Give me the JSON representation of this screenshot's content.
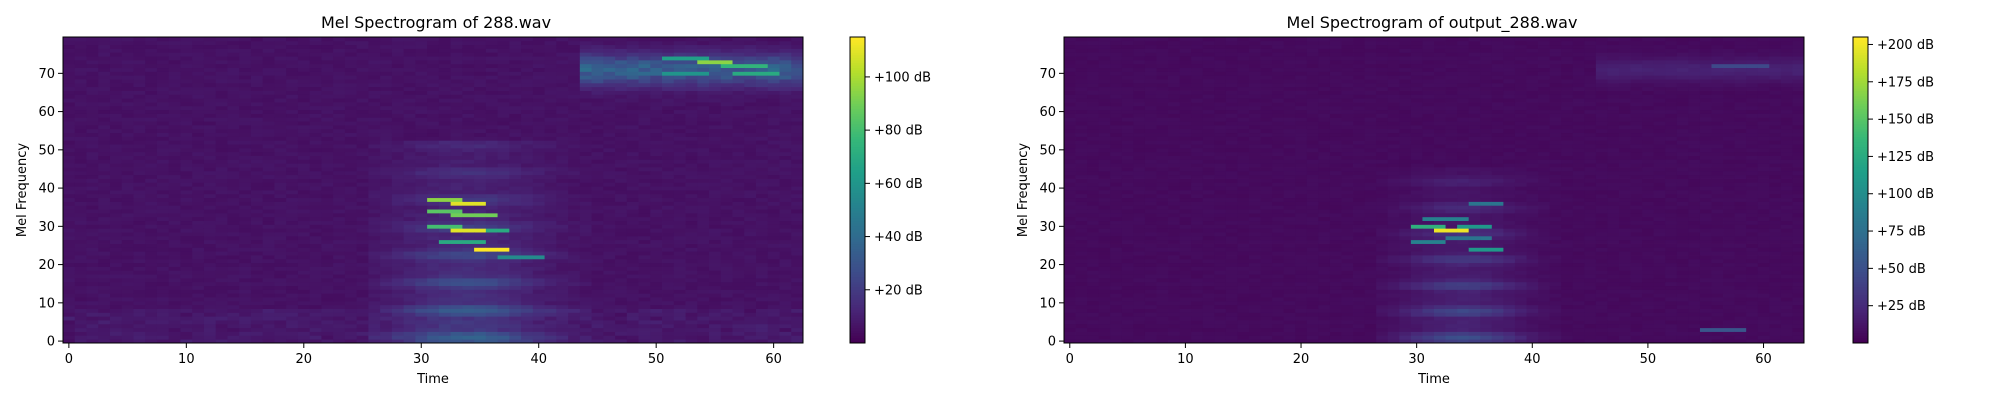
{
  "chart_data": [
    {
      "type": "heatmap",
      "title": "Mel Spectrogram of 288.wav",
      "xlabel": "Time",
      "ylabel": "Mel Frequency",
      "xlim": [
        -0.5,
        62.5
      ],
      "ylim": [
        -0.5,
        79.5
      ],
      "x_ticks": [
        0,
        10,
        20,
        30,
        40,
        50,
        60
      ],
      "y_ticks": [
        0,
        10,
        20,
        30,
        40,
        50,
        60,
        70
      ],
      "colormap": "viridis",
      "color_range": [
        0,
        115
      ],
      "colorbar": {
        "ticks": [
          20,
          40,
          60,
          80,
          100
        ],
        "tick_labels": [
          "+20 dB",
          "+40 dB",
          "+60 dB",
          "+80 dB",
          "+100 dB"
        ]
      },
      "features": [
        {
          "t0": 31,
          "t1": 33,
          "f": 37,
          "value": 95
        },
        {
          "t0": 33,
          "t1": 35,
          "f": 36,
          "value": 110
        },
        {
          "t0": 31,
          "t1": 33,
          "f": 34,
          "value": 85
        },
        {
          "t0": 33,
          "t1": 36,
          "f": 33,
          "value": 90
        },
        {
          "t0": 31,
          "t1": 33,
          "f": 30,
          "value": 80
        },
        {
          "t0": 33,
          "t1": 35,
          "f": 29,
          "value": 110
        },
        {
          "t0": 35,
          "t1": 37,
          "f": 29,
          "value": 70
        },
        {
          "t0": 32,
          "t1": 35,
          "f": 26,
          "value": 70
        },
        {
          "t0": 35,
          "t1": 37,
          "f": 24,
          "value": 115
        },
        {
          "t0": 37,
          "t1": 40,
          "f": 22,
          "value": 55
        },
        {
          "t0": 51,
          "t1": 54,
          "f": 74,
          "value": 65
        },
        {
          "t0": 54,
          "t1": 56,
          "f": 73,
          "value": 95
        },
        {
          "t0": 56,
          "t1": 59,
          "f": 72,
          "value": 75
        },
        {
          "t0": 51,
          "t1": 54,
          "f": 70,
          "value": 60
        },
        {
          "t0": 57,
          "t1": 60,
          "f": 70,
          "value": 70
        }
      ]
    },
    {
      "type": "heatmap",
      "title": "Mel Spectrogram of output_288.wav",
      "xlabel": "Time",
      "ylabel": "Mel Frequency",
      "xlim": [
        -0.5,
        63.5
      ],
      "ylim": [
        -0.5,
        79.5
      ],
      "x_ticks": [
        0,
        10,
        20,
        30,
        40,
        50,
        60
      ],
      "y_ticks": [
        0,
        10,
        20,
        30,
        40,
        50,
        60,
        70
      ],
      "colormap": "viridis",
      "color_range": [
        0,
        205
      ],
      "colorbar": {
        "ticks": [
          25,
          50,
          75,
          100,
          125,
          150,
          175,
          200
        ],
        "tick_labels": [
          "+25 dB",
          "+50 dB",
          "+75 dB",
          "+100 dB",
          "+125 dB",
          "+150 dB",
          "+175 dB",
          "+200 dB"
        ]
      },
      "features": [
        {
          "t0": 32,
          "t1": 34,
          "f": 29,
          "value": 200
        },
        {
          "t0": 30,
          "t1": 32,
          "f": 30,
          "value": 130
        },
        {
          "t0": 34,
          "t1": 36,
          "f": 30,
          "value": 110
        },
        {
          "t0": 31,
          "t1": 34,
          "f": 32,
          "value": 90
        },
        {
          "t0": 35,
          "t1": 37,
          "f": 36,
          "value": 80
        },
        {
          "t0": 35,
          "t1": 37,
          "f": 24,
          "value": 110
        },
        {
          "t0": 30,
          "t1": 32,
          "f": 26,
          "value": 90
        },
        {
          "t0": 33,
          "t1": 36,
          "f": 27,
          "value": 80
        },
        {
          "t0": 55,
          "t1": 58,
          "f": 3,
          "value": 55
        },
        {
          "t0": 56,
          "t1": 60,
          "f": 72,
          "value": 45
        }
      ]
    }
  ]
}
